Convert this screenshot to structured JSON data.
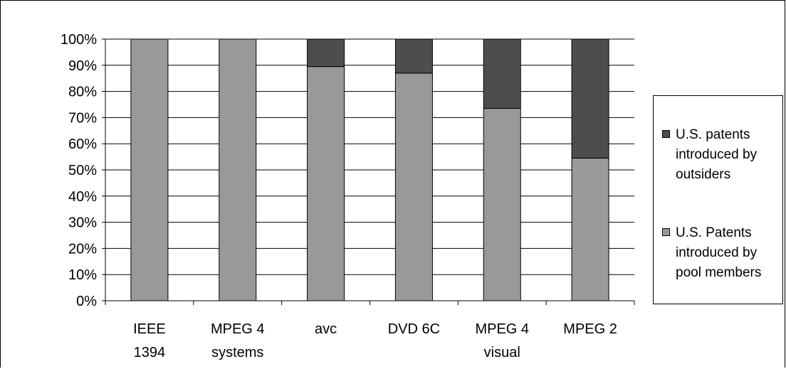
{
  "chart_data": {
    "type": "bar",
    "stacked": true,
    "categories": [
      "IEEE\n1394",
      "MPEG 4\nsystems",
      "avc",
      "DVD 6C",
      "MPEG 4\nvisual",
      "MPEG 2"
    ],
    "series": [
      {
        "name": "U.S. Patents introduced by pool members",
        "values": [
          100,
          100,
          89.5,
          87,
          73.5,
          54.5
        ],
        "color": "#999999"
      },
      {
        "name": "U.S. patents introduced by outsiders",
        "values": [
          0,
          0,
          10.5,
          13,
          26.5,
          45.5
        ],
        "color": "#4d4d4d"
      }
    ],
    "yticks": [
      "0%",
      "10%",
      "20%",
      "30%",
      "40%",
      "50%",
      "60%",
      "70%",
      "80%",
      "90%",
      "100%"
    ],
    "ylim": [
      0,
      100
    ],
    "grid": true,
    "legend_position": "right",
    "legend": [
      {
        "label": "U.S. patents\nintroduced by\noutsiders",
        "color": "#4d4d4d"
      },
      {
        "label": "U.S. Patents\nintroduced by\npool members",
        "color": "#999999"
      }
    ]
  }
}
